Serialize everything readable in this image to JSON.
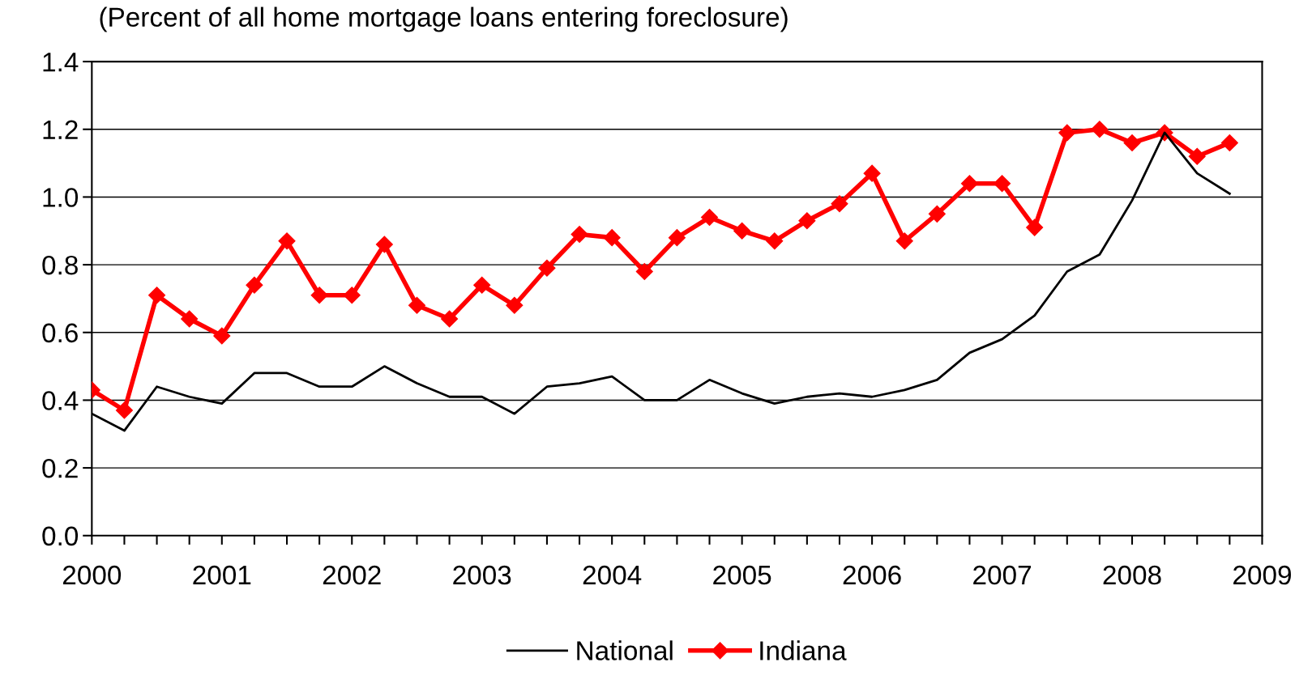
{
  "chart_data": {
    "type": "line",
    "title": "(Percent of all home mortgage loans entering foreclosure)",
    "x": [
      2000,
      2000.25,
      2000.5,
      2000.75,
      2001,
      2001.25,
      2001.5,
      2001.75,
      2002,
      2002.25,
      2002.5,
      2002.75,
      2003,
      2003.25,
      2003.5,
      2003.75,
      2004,
      2004.25,
      2004.5,
      2004.75,
      2005,
      2005.25,
      2005.5,
      2005.75,
      2006,
      2006.25,
      2006.5,
      2006.75,
      2007,
      2007.25,
      2007.5,
      2007.75,
      2008,
      2008.25,
      2008.5,
      2008.75
    ],
    "series": [
      {
        "name": "National",
        "color": "#000000",
        "marker": "none",
        "values": [
          0.36,
          0.31,
          0.44,
          0.41,
          0.39,
          0.48,
          0.48,
          0.44,
          0.44,
          0.5,
          0.45,
          0.41,
          0.41,
          0.36,
          0.44,
          0.45,
          0.47,
          0.4,
          0.4,
          0.46,
          0.42,
          0.39,
          0.41,
          0.42,
          0.41,
          0.43,
          0.46,
          0.54,
          0.58,
          0.65,
          0.78,
          0.83,
          0.99,
          1.19,
          1.07,
          1.01
        ]
      },
      {
        "name": "Indiana",
        "color": "#ff0000",
        "marker": "diamond",
        "values": [
          0.43,
          0.37,
          0.71,
          0.64,
          0.59,
          0.74,
          0.87,
          0.71,
          0.71,
          0.86,
          0.68,
          0.64,
          0.74,
          0.68,
          0.79,
          0.89,
          0.88,
          0.78,
          0.88,
          0.94,
          0.9,
          0.87,
          0.93,
          0.98,
          1.07,
          0.87,
          0.95,
          1.04,
          1.04,
          0.91,
          1.19,
          1.2,
          1.16,
          1.19,
          1.12,
          1.16
        ]
      }
    ],
    "xlim": [
      2000,
      2009
    ],
    "xticks": [
      2000,
      {
        "value": 2000.25,
        "label": null
      },
      {
        "value": 2000.5,
        "label": null
      },
      {
        "value": 2000.75,
        "label": null
      },
      2001,
      {
        "value": 2001.25,
        "label": null
      },
      {
        "value": 2001.5,
        "label": null
      },
      {
        "value": 2001.75,
        "label": null
      },
      2002,
      {
        "value": 2002.25,
        "label": null
      },
      {
        "value": 2002.5,
        "label": null
      },
      {
        "value": 2002.75,
        "label": null
      },
      2003,
      {
        "value": 2003.25,
        "label": null
      },
      {
        "value": 2003.5,
        "label": null
      },
      {
        "value": 2003.75,
        "label": null
      },
      2004,
      {
        "value": 2004.25,
        "label": null
      },
      {
        "value": 2004.5,
        "label": null
      },
      {
        "value": 2004.75,
        "label": null
      },
      2005,
      {
        "value": 2005.25,
        "label": null
      },
      {
        "value": 2005.5,
        "label": null
      },
      {
        "value": 2005.75,
        "label": null
      },
      2006,
      {
        "value": 2006.25,
        "label": null
      },
      {
        "value": 2006.5,
        "label": null
      },
      {
        "value": 2006.75,
        "label": null
      },
      2007,
      {
        "value": 2007.25,
        "label": null
      },
      {
        "value": 2007.5,
        "label": null
      },
      {
        "value": 2007.75,
        "label": null
      },
      2008,
      {
        "value": 2008.25,
        "label": null
      },
      {
        "value": 2008.5,
        "label": null
      },
      {
        "value": 2008.75,
        "label": null
      },
      2009
    ],
    "ylim": [
      0,
      1.4
    ],
    "yticks": [
      {
        "value": 0,
        "label": "0.0"
      },
      {
        "value": 0.2,
        "label": "0.2"
      },
      {
        "value": 0.4,
        "label": "0.4"
      },
      {
        "value": 0.6,
        "label": "0.6"
      },
      {
        "value": 0.8,
        "label": "0.8"
      },
      {
        "value": 1.0,
        "label": "1.0"
      },
      {
        "value": 1.2,
        "label": "1.2"
      },
      {
        "value": 1.4,
        "label": "1.4"
      }
    ],
    "grid": "y",
    "legend": "bottom",
    "line_style": "solid"
  }
}
